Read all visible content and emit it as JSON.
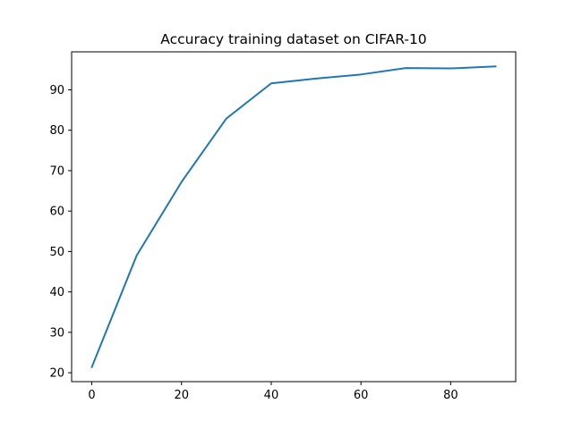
{
  "chart_data": {
    "type": "line",
    "title": "Accuracy training dataset on CIFAR-10",
    "xlabel": "",
    "ylabel": "",
    "xlim": [
      -4.5,
      94.5
    ],
    "ylim": [
      17.8,
      99.4
    ],
    "xticks": [
      0,
      20,
      40,
      60,
      80
    ],
    "yticks": [
      20,
      30,
      40,
      50,
      60,
      70,
      80,
      90
    ],
    "grid": false,
    "legend": "none",
    "series": [
      {
        "color": "#1f77b4",
        "x": [
          0,
          10,
          20,
          30,
          40,
          50,
          60,
          70,
          80,
          90
        ],
        "y": [
          21.4,
          49.0,
          67.2,
          82.9,
          91.6,
          92.8,
          93.8,
          95.4,
          95.3,
          95.8
        ]
      }
    ]
  }
}
